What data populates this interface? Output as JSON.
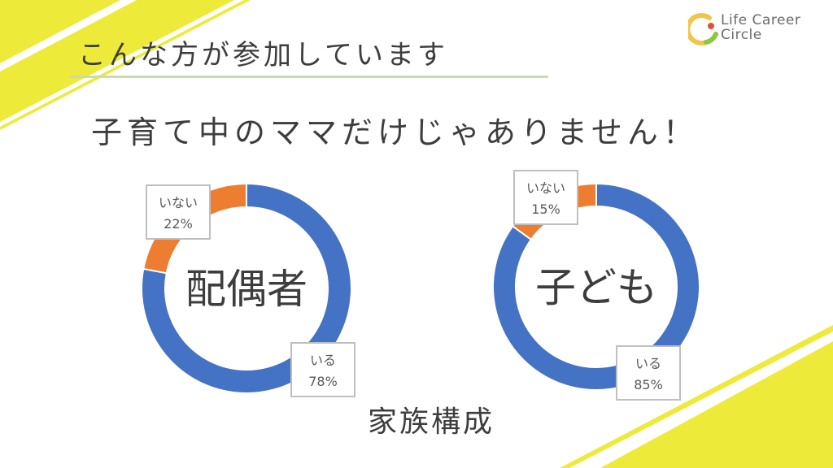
{
  "logo": {
    "line1": "Life Career",
    "line2": "Circle",
    "arc_colors": [
      "#f4c34a",
      "#8dc63f",
      "#e94b3c"
    ]
  },
  "heading": "こんな方が参加しています",
  "subheading": "子育て中のママだけじゃありません！",
  "caption": "家族構成",
  "colors": {
    "primary": "#4472c4",
    "secondary": "#ed7d31",
    "accent_yellow": "#eeea3a",
    "rule_green": "#c9dcae"
  },
  "chart_data": [
    {
      "type": "pie",
      "center_label": "配偶者",
      "slices": [
        {
          "label": "いる",
          "value": 78,
          "display": "78%",
          "color": "#4472c4"
        },
        {
          "label": "いない",
          "value": 22,
          "display": "22%",
          "color": "#ed7d31"
        }
      ]
    },
    {
      "type": "pie",
      "center_label": "子ども",
      "slices": [
        {
          "label": "いる",
          "value": 85,
          "display": "85%",
          "color": "#4472c4"
        },
        {
          "label": "いない",
          "value": 15,
          "display": "15%",
          "color": "#ed7d31"
        }
      ]
    }
  ]
}
